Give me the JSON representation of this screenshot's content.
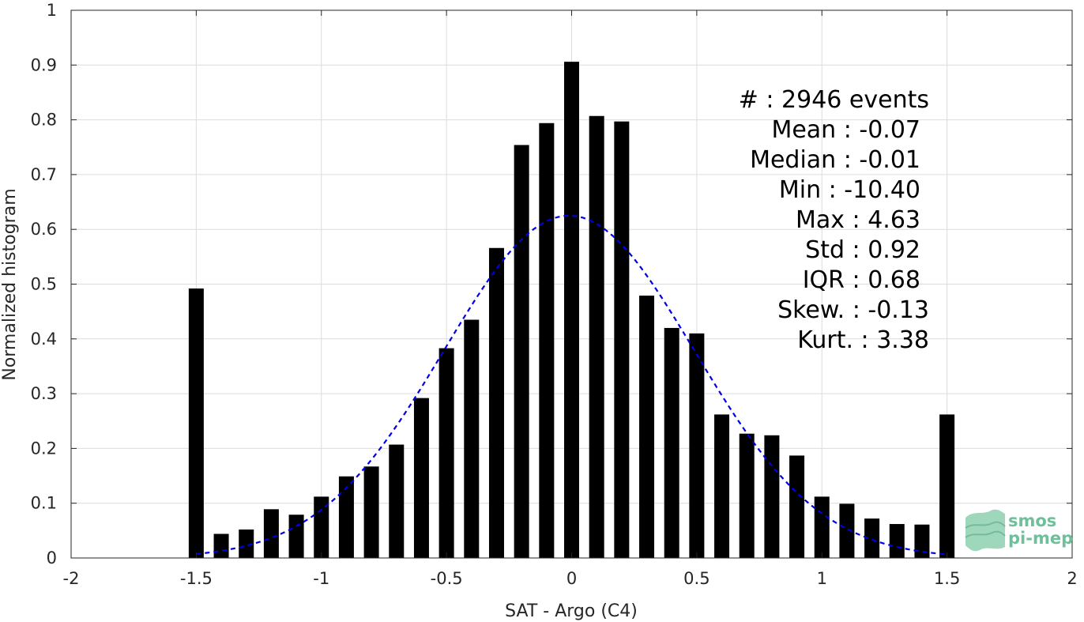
{
  "chart_data": {
    "type": "bar",
    "xlabel": "SAT - Argo (C4)",
    "ylabel": "Normalized histogram",
    "xlim": [
      -2,
      2
    ],
    "ylim": [
      0,
      1
    ],
    "xticks": [
      "-2",
      "-1.5",
      "-1",
      "-0.5",
      "0",
      "0.5",
      "1",
      "1.5",
      "2"
    ],
    "yticks": [
      "0",
      "0.1",
      "0.2",
      "0.3",
      "0.4",
      "0.5",
      "0.6",
      "0.7",
      "0.8",
      "0.9",
      "1"
    ],
    "grid": true,
    "bar_color": "#000000",
    "bars": {
      "x": [
        -1.5,
        -1.4,
        -1.3,
        -1.2,
        -1.1,
        -1.0,
        -0.9,
        -0.8,
        -0.7,
        -0.6,
        -0.5,
        -0.4,
        -0.3,
        -0.2,
        -0.1,
        0.0,
        0.1,
        0.2,
        0.3,
        0.4,
        0.5,
        0.6,
        0.7,
        0.8,
        0.9,
        1.0,
        1.1,
        1.2,
        1.3,
        1.4,
        1.5
      ],
      "values": [
        0.492,
        0.044,
        0.052,
        0.089,
        0.079,
        0.112,
        0.149,
        0.167,
        0.207,
        0.292,
        0.383,
        0.435,
        0.566,
        0.754,
        0.794,
        0.906,
        0.807,
        0.797,
        0.479,
        0.42,
        0.41,
        0.262,
        0.227,
        0.224,
        0.187,
        0.112,
        0.099,
        0.072,
        0.062,
        0.061,
        0.262
      ],
      "width": 0.06
    },
    "fit_curve": {
      "style": "dashed",
      "color": "#0000e6",
      "mean": -0.01,
      "std": 0.5,
      "peak": 0.625,
      "x_range": [
        -1.5,
        1.5
      ]
    },
    "stats": [
      "#  : 2946 events",
      "Mean : -0.07",
      "Median : -0.01",
      "Min : -10.40",
      "Max : 4.63",
      "Std : 0.92",
      "IQR : 0.68",
      "Skew. : -0.13",
      "Kurt. : 3.38"
    ]
  },
  "logo": {
    "line1": "smos",
    "line2": "pi-mep",
    "color": "#6fbf9a"
  }
}
